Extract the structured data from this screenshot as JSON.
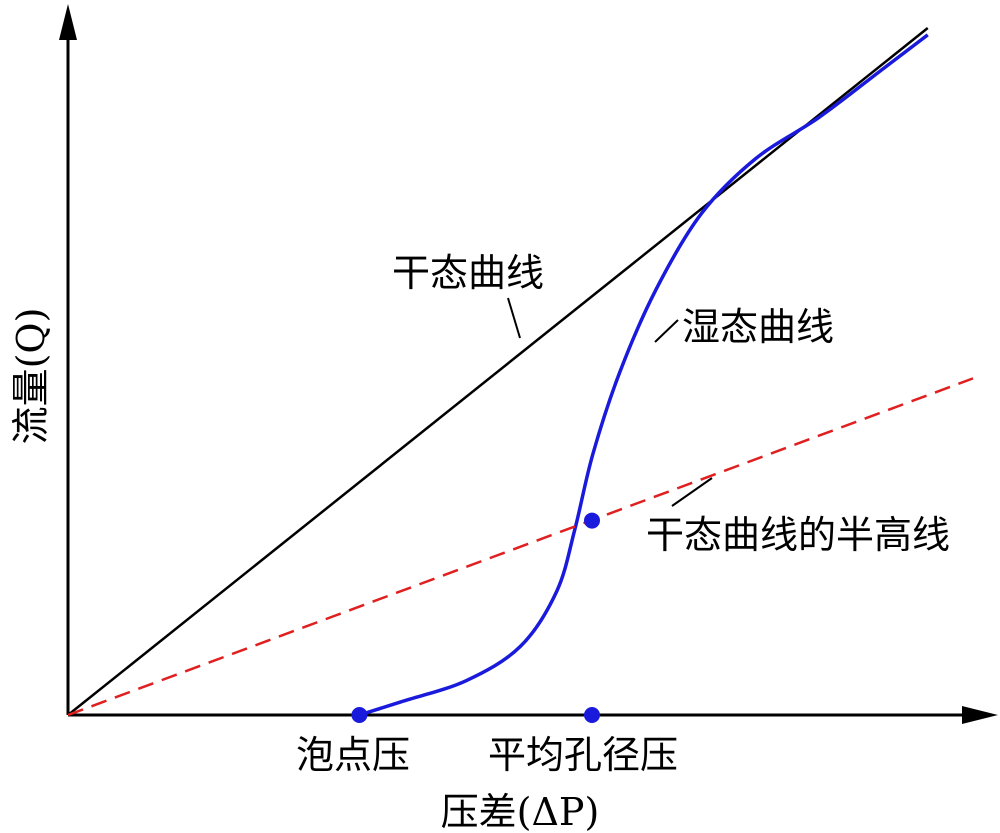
{
  "chart_data": {
    "type": "line",
    "title": "",
    "xlabel": "压差(ΔP)",
    "ylabel": "流量(Q)",
    "xlim": [
      0,
      1
    ],
    "ylim": [
      0,
      1
    ],
    "grid": false,
    "series": [
      {
        "name": "干态曲线",
        "color": "#000000",
        "style": "solid",
        "x": [
          0,
          0.95
        ],
        "y": [
          0,
          1.0
        ]
      },
      {
        "name": "湿态曲线",
        "color": "#1a1adc",
        "style": "solid",
        "x": [
          0.322,
          0.37,
          0.44,
          0.5,
          0.54,
          0.56,
          0.58,
          0.61,
          0.65,
          0.7,
          0.76,
          0.83,
          0.9,
          0.95
        ],
        "y": [
          0.0,
          0.02,
          0.05,
          0.1,
          0.18,
          0.27,
          0.38,
          0.5,
          0.62,
          0.73,
          0.81,
          0.87,
          0.94,
          0.99
        ]
      },
      {
        "name": "干态曲线的半高线",
        "color": "#e02020",
        "style": "dashed",
        "x": [
          0,
          1.0
        ],
        "y": [
          0,
          0.49
        ]
      }
    ],
    "points": [
      {
        "label": "泡点压",
        "x": 0.322,
        "y": 0
      },
      {
        "label": "平均孔径压",
        "x": 0.579,
        "y": 0
      },
      {
        "label": "",
        "x": 0.579,
        "y": 0.283
      }
    ]
  }
}
